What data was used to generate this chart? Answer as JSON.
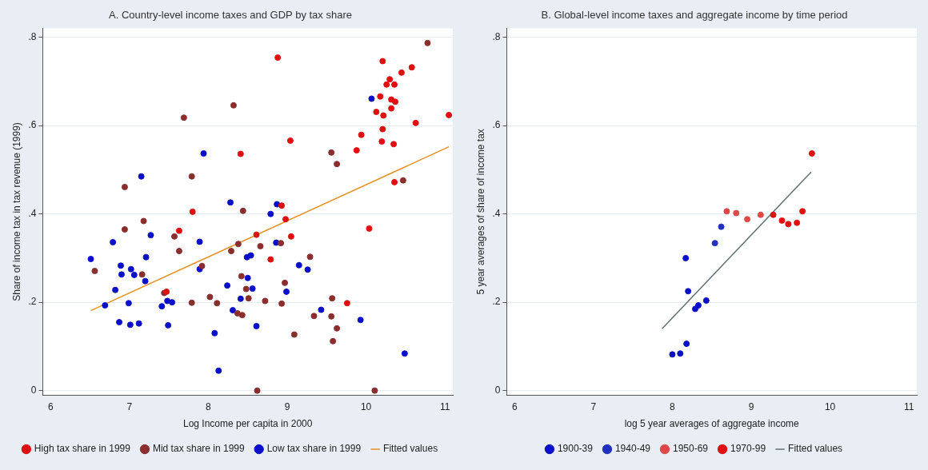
{
  "chart_data": [
    {
      "type": "scatter",
      "title": "A. Country-level income taxes and GDP by tax share",
      "xlabel": "Log Income per capita in 2000",
      "ylabel": "Share of income tax in tax revenue (1999)",
      "xlim": [
        5.9,
        11.1
      ],
      "ylim": [
        -0.01,
        0.82
      ],
      "xticks": [
        6,
        7,
        8,
        9,
        10,
        11
      ],
      "yticks": [
        {
          "value": 0,
          "label": "0"
        },
        {
          "value": 0.2,
          "label": ".2"
        },
        {
          "value": 0.4,
          "label": ".4"
        },
        {
          "value": 0.6,
          "label": ".6"
        },
        {
          "value": 0.8,
          "label": ".8"
        }
      ],
      "grid": "y",
      "legend": "bottom",
      "series": [
        {
          "name": "High tax share in 1999",
          "marker": "circle",
          "color": "#e01010",
          "x": [
            8.41,
            7.8,
            7.63,
            8.61,
            7.47,
            8.88,
            10.21,
            10.58,
            10.45,
            10.3,
            10.26,
            10.36,
            10.18,
            10.32,
            10.37,
            10.32,
            10.13,
            10.22,
            11.05,
            10.63,
            10.21,
            9.94,
            9.04,
            10.2,
            10.35,
            9.88,
            10.36,
            8.93,
            8.98,
            9.05,
            8.79,
            10.04,
            9.76
          ],
          "values": [
            0.536,
            0.405,
            0.362,
            0.353,
            0.224,
            0.754,
            0.746,
            0.732,
            0.72,
            0.705,
            0.693,
            0.693,
            0.666,
            0.659,
            0.654,
            0.639,
            0.631,
            0.623,
            0.624,
            0.606,
            0.592,
            0.579,
            0.566,
            0.564,
            0.558,
            0.544,
            0.472,
            0.419,
            0.388,
            0.349,
            0.297,
            0.367,
            0.198
          ]
        },
        {
          "name": "Mid tax share in 1999",
          "marker": "circle",
          "color": "#8b2e2e",
          "x": [
            8.32,
            7.69,
            7.79,
            6.94,
            8.44,
            7.18,
            6.94,
            7.57,
            7.63,
            8.38,
            8.29,
            8.66,
            6.56,
            7.16,
            7.92,
            8.42,
            8.48,
            8.51,
            7.44,
            7.79,
            8.02,
            8.11,
            8.37,
            8.43,
            8.72,
            8.62,
            10.78,
            9.56,
            9.63,
            10.47,
            8.92,
            9.29,
            8.97,
            9.57,
            8.93,
            9.34,
            9.56,
            9.63,
            9.09,
            9.58,
            10.11
          ],
          "values": [
            0.646,
            0.618,
            0.485,
            0.461,
            0.407,
            0.384,
            0.365,
            0.349,
            0.316,
            0.332,
            0.316,
            0.327,
            0.271,
            0.263,
            0.282,
            0.259,
            0.23,
            0.209,
            0.221,
            0.199,
            0.212,
            0.198,
            0.175,
            0.171,
            0.203,
            0.0,
            0.787,
            0.539,
            0.513,
            0.476,
            0.334,
            0.303,
            0.244,
            0.209,
            0.197,
            0.169,
            0.168,
            0.141,
            0.127,
            0.112,
            0.0
          ]
        },
        {
          "name": "Low tax share in 1999",
          "marker": "circle",
          "color": "#0a10c8",
          "x": [
            7.94,
            7.15,
            8.28,
            7.27,
            6.79,
            7.89,
            6.51,
            7.21,
            8.49,
            8.54,
            6.89,
            6.9,
            7.02,
            7.06,
            7.2,
            7.89,
            8.5,
            8.24,
            8.56,
            6.82,
            6.69,
            6.99,
            7.41,
            7.48,
            7.54,
            8.41,
            8.31,
            6.87,
            7.01,
            7.12,
            7.49,
            8.61,
            8.08,
            8.13,
            10.07,
            8.87,
            8.79,
            8.86,
            9.15,
            9.26,
            8.99,
            9.43,
            9.93,
            10.49
          ],
          "values": [
            0.537,
            0.485,
            0.426,
            0.352,
            0.336,
            0.337,
            0.298,
            0.302,
            0.302,
            0.306,
            0.283,
            0.263,
            0.275,
            0.262,
            0.248,
            0.275,
            0.255,
            0.238,
            0.231,
            0.228,
            0.193,
            0.198,
            0.191,
            0.203,
            0.2,
            0.208,
            0.182,
            0.155,
            0.149,
            0.152,
            0.148,
            0.146,
            0.13,
            0.045,
            0.661,
            0.422,
            0.4,
            0.335,
            0.284,
            0.274,
            0.224,
            0.183,
            0.16,
            0.084
          ]
        },
        {
          "name": "Fitted values",
          "type": "line",
          "marker": "none",
          "color": "#e8901e",
          "x": [
            6.51,
            11.05
          ],
          "values": [
            0.181,
            0.552
          ]
        }
      ]
    },
    {
      "type": "scatter",
      "title": "B. Global-level income taxes and aggregate income by time period",
      "xlabel": "log 5 year averages of aggregate income",
      "ylabel": "5 year averages of share of income tax",
      "xlim": [
        5.9,
        11.1
      ],
      "ylim": [
        -0.01,
        0.82
      ],
      "xticks": [
        6,
        7,
        8,
        9,
        10,
        11
      ],
      "yticks": [
        {
          "value": 0,
          "label": "0"
        },
        {
          "value": 0.2,
          "label": ".2"
        },
        {
          "value": 0.4,
          "label": ".4"
        },
        {
          "value": 0.6,
          "label": ".6"
        },
        {
          "value": 0.8,
          "label": ".8"
        }
      ],
      "grid": "y",
      "legend": "bottom",
      "series": [
        {
          "name": "1900-39",
          "marker": "circle",
          "color": "#0a10c8",
          "x": [
            8.17,
            8.2,
            8.29,
            8.33,
            8.43,
            8.18,
            8.0,
            8.1
          ],
          "values": [
            0.3,
            0.225,
            0.185,
            0.193,
            0.204,
            0.106,
            0.082,
            0.084
          ]
        },
        {
          "name": "1940-49",
          "marker": "circle",
          "color": "#2030c0",
          "x": [
            8.54,
            8.62
          ],
          "values": [
            0.334,
            0.371
          ]
        },
        {
          "name": "1950-69",
          "marker": "circle",
          "color": "#e04848",
          "x": [
            8.69,
            8.81,
            8.95,
            9.12
          ],
          "values": [
            0.406,
            0.402,
            0.388,
            0.398
          ]
        },
        {
          "name": "1970-99",
          "marker": "circle",
          "color": "#e01010",
          "x": [
            9.28,
            9.39,
            9.47,
            9.58,
            9.65,
            9.77
          ],
          "values": [
            0.398,
            0.385,
            0.377,
            0.38,
            0.406,
            0.537
          ]
        },
        {
          "name": "Fitted values",
          "type": "line",
          "marker": "none",
          "color": "#607070",
          "x": [
            7.87,
            9.76
          ],
          "values": [
            0.14,
            0.495
          ]
        }
      ]
    }
  ]
}
